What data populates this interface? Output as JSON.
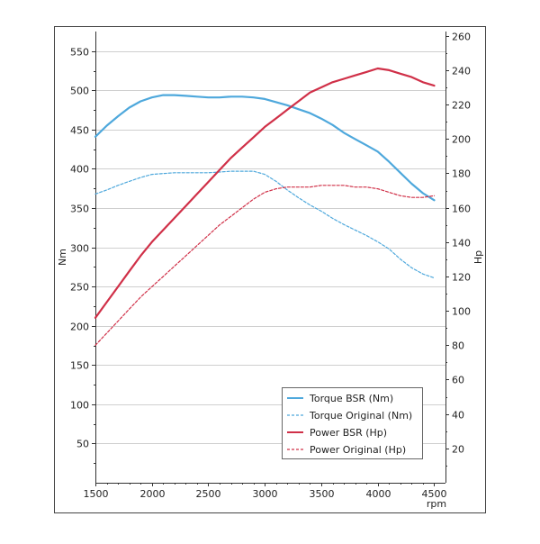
{
  "chart_data": {
    "type": "line",
    "x_unit_label": "rpm",
    "x_ticks": [
      1500,
      2000,
      2500,
      3000,
      3500,
      4000,
      4500
    ],
    "xlim": [
      1500,
      4600
    ],
    "y_left": {
      "label": "Nm",
      "ticks": [
        50,
        100,
        150,
        200,
        250,
        300,
        350,
        400,
        450,
        500,
        550
      ],
      "lim": [
        0,
        575
      ]
    },
    "y_right": {
      "label": "Hp",
      "ticks": [
        20,
        40,
        60,
        80,
        100,
        120,
        140,
        160,
        180,
        200,
        220,
        240,
        260
      ],
      "lim": [
        0,
        262.5
      ]
    },
    "grid": true,
    "legend_position": "bottom-right",
    "series": [
      {
        "name": "Torque BSR (Nm)",
        "axis": "left",
        "color": "#4ea8dc",
        "dash": "solid",
        "points": [
          [
            1500,
            441
          ],
          [
            1600,
            455
          ],
          [
            1700,
            467
          ],
          [
            1800,
            478
          ],
          [
            1900,
            486
          ],
          [
            2000,
            491
          ],
          [
            2100,
            494
          ],
          [
            2200,
            494
          ],
          [
            2300,
            493
          ],
          [
            2400,
            492
          ],
          [
            2500,
            491
          ],
          [
            2600,
            491
          ],
          [
            2700,
            492
          ],
          [
            2800,
            492
          ],
          [
            2900,
            491
          ],
          [
            3000,
            489
          ],
          [
            3100,
            485
          ],
          [
            3200,
            481
          ],
          [
            3300,
            476
          ],
          [
            3400,
            471
          ],
          [
            3500,
            464
          ],
          [
            3600,
            456
          ],
          [
            3700,
            446
          ],
          [
            3800,
            438
          ],
          [
            3900,
            430
          ],
          [
            4000,
            422
          ],
          [
            4100,
            409
          ],
          [
            4200,
            395
          ],
          [
            4300,
            381
          ],
          [
            4400,
            369
          ],
          [
            4500,
            360
          ]
        ]
      },
      {
        "name": "Torque Original (Nm)",
        "axis": "left",
        "color": "#4ea8dc",
        "dash": "dashed",
        "points": [
          [
            1500,
            368
          ],
          [
            1600,
            373
          ],
          [
            1700,
            379
          ],
          [
            1800,
            384
          ],
          [
            1900,
            389
          ],
          [
            2000,
            393
          ],
          [
            2100,
            394
          ],
          [
            2200,
            395
          ],
          [
            2300,
            395
          ],
          [
            2400,
            395
          ],
          [
            2500,
            395
          ],
          [
            2600,
            396
          ],
          [
            2700,
            397
          ],
          [
            2800,
            397
          ],
          [
            2900,
            397
          ],
          [
            3000,
            393
          ],
          [
            3100,
            384
          ],
          [
            3200,
            373
          ],
          [
            3300,
            363
          ],
          [
            3400,
            354
          ],
          [
            3500,
            346
          ],
          [
            3600,
            337
          ],
          [
            3700,
            329
          ],
          [
            3800,
            322
          ],
          [
            3900,
            315
          ],
          [
            4000,
            307
          ],
          [
            4100,
            298
          ],
          [
            4200,
            285
          ],
          [
            4300,
            274
          ],
          [
            4400,
            266
          ],
          [
            4500,
            261
          ]
        ]
      },
      {
        "name": "Power BSR (Hp)",
        "axis": "right",
        "color": "#d03048",
        "dash": "solid",
        "points": [
          [
            1500,
            96
          ],
          [
            1600,
            105
          ],
          [
            1700,
            114
          ],
          [
            1800,
            123
          ],
          [
            1900,
            132
          ],
          [
            2000,
            140
          ],
          [
            2100,
            147
          ],
          [
            2200,
            154
          ],
          [
            2300,
            161
          ],
          [
            2400,
            168
          ],
          [
            2500,
            175
          ],
          [
            2600,
            182
          ],
          [
            2700,
            189
          ],
          [
            2800,
            195
          ],
          [
            2900,
            201
          ],
          [
            3000,
            207
          ],
          [
            3100,
            212
          ],
          [
            3200,
            217
          ],
          [
            3300,
            222
          ],
          [
            3400,
            227
          ],
          [
            3500,
            230
          ],
          [
            3600,
            233
          ],
          [
            3700,
            235
          ],
          [
            3800,
            237
          ],
          [
            3900,
            239
          ],
          [
            4000,
            241
          ],
          [
            4100,
            240
          ],
          [
            4200,
            238
          ],
          [
            4300,
            236
          ],
          [
            4400,
            233
          ],
          [
            4500,
            231
          ]
        ]
      },
      {
        "name": "Power Original (Hp)",
        "axis": "right",
        "color": "#d03048",
        "dash": "dashed",
        "points": [
          [
            1500,
            80
          ],
          [
            1600,
            87
          ],
          [
            1700,
            94
          ],
          [
            1800,
            101
          ],
          [
            1900,
            108
          ],
          [
            2000,
            114
          ],
          [
            2100,
            120
          ],
          [
            2200,
            126
          ],
          [
            2300,
            132
          ],
          [
            2400,
            138
          ],
          [
            2500,
            144
          ],
          [
            2600,
            150
          ],
          [
            2700,
            155
          ],
          [
            2800,
            160
          ],
          [
            2900,
            165
          ],
          [
            3000,
            169
          ],
          [
            3100,
            171
          ],
          [
            3200,
            172
          ],
          [
            3300,
            172
          ],
          [
            3400,
            172
          ],
          [
            3500,
            173
          ],
          [
            3600,
            173
          ],
          [
            3700,
            173
          ],
          [
            3800,
            172
          ],
          [
            3900,
            172
          ],
          [
            4000,
            171
          ],
          [
            4100,
            169
          ],
          [
            4200,
            167
          ],
          [
            4300,
            166
          ],
          [
            4400,
            166
          ],
          [
            4500,
            167
          ]
        ]
      }
    ]
  }
}
